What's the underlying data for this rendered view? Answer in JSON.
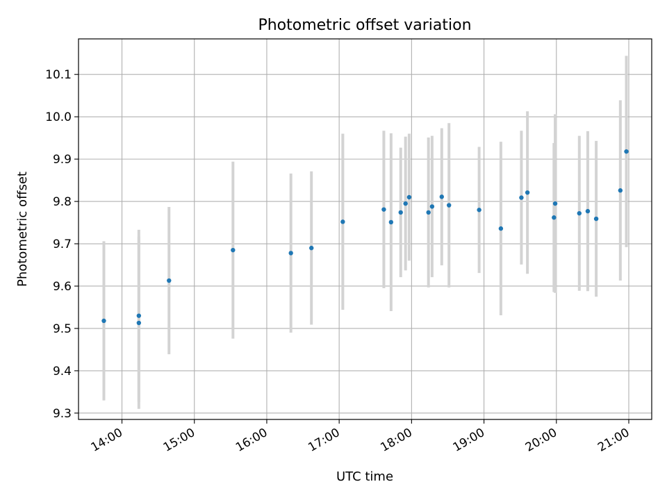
{
  "chart_data": {
    "type": "scatter",
    "title": "Photometric offset variation",
    "xlabel": "UTC time",
    "ylabel": "Photometric offset",
    "x_tick_labels": [
      "14:00",
      "15:00",
      "16:00",
      "17:00",
      "18:00",
      "19:00",
      "20:00",
      "21:00"
    ],
    "y_tick_labels": [
      "9.3",
      "9.4",
      "9.5",
      "9.6",
      "9.7",
      "9.8",
      "9.9",
      "10.0",
      "10.1"
    ],
    "xlim": [
      "13:24",
      "21:19"
    ],
    "ylim": [
      9.285,
      10.184
    ],
    "grid": true,
    "marker_color": "#1f77b4",
    "errorbar_color": "#d3d3d3",
    "points": [
      {
        "time": "13:45",
        "y": 9.518,
        "err": 0.188
      },
      {
        "time": "14:14",
        "y": 9.53,
        "err": 0.203
      },
      {
        "time": "14:14",
        "y": 9.513,
        "err": 0.203
      },
      {
        "time": "14:39",
        "y": 9.613,
        "err": 0.174
      },
      {
        "time": "15:32",
        "y": 9.685,
        "err": 0.209
      },
      {
        "time": "16:20",
        "y": 9.678,
        "err": 0.188
      },
      {
        "time": "16:37",
        "y": 9.69,
        "err": 0.181
      },
      {
        "time": "17:03",
        "y": 9.752,
        "err": 0.208
      },
      {
        "time": "17:37",
        "y": 9.781,
        "err": 0.186
      },
      {
        "time": "17:43",
        "y": 9.751,
        "err": 0.21
      },
      {
        "time": "17:51",
        "y": 9.774,
        "err": 0.153
      },
      {
        "time": "17:55",
        "y": 9.795,
        "err": 0.158
      },
      {
        "time": "17:58",
        "y": 9.81,
        "err": 0.15
      },
      {
        "time": "18:14",
        "y": 9.774,
        "err": 0.177
      },
      {
        "time": "18:17",
        "y": 9.788,
        "err": 0.167
      },
      {
        "time": "18:25",
        "y": 9.811,
        "err": 0.162
      },
      {
        "time": "18:31",
        "y": 9.791,
        "err": 0.194
      },
      {
        "time": "18:56",
        "y": 9.78,
        "err": 0.149
      },
      {
        "time": "19:14",
        "y": 9.736,
        "err": 0.205
      },
      {
        "time": "19:31",
        "y": 9.809,
        "err": 0.158
      },
      {
        "time": "19:36",
        "y": 9.821,
        "err": 0.192
      },
      {
        "time": "19:58",
        "y": 9.762,
        "err": 0.176
      },
      {
        "time": "19:59",
        "y": 9.795,
        "err": 0.211
      },
      {
        "time": "20:19",
        "y": 9.772,
        "err": 0.183
      },
      {
        "time": "20:26",
        "y": 9.777,
        "err": 0.189
      },
      {
        "time": "20:33",
        "y": 9.759,
        "err": 0.184
      },
      {
        "time": "20:53",
        "y": 9.826,
        "err": 0.213
      },
      {
        "time": "20:58",
        "y": 9.918,
        "err": 0.226
      }
    ]
  }
}
